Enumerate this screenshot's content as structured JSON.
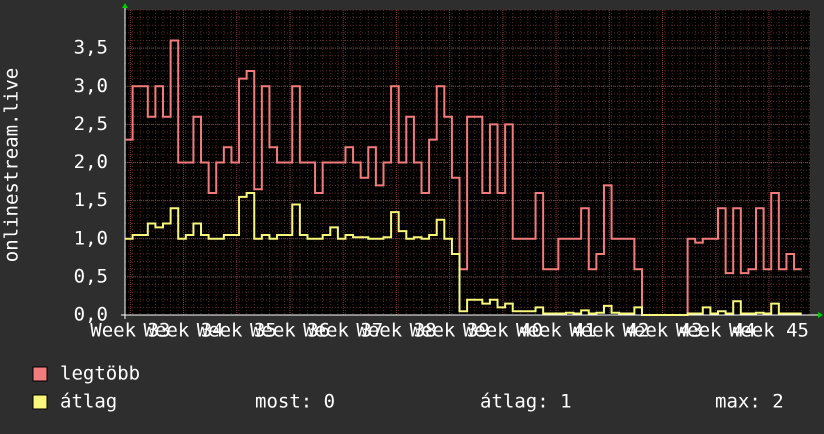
{
  "chart_data": {
    "type": "step",
    "ylabel": "onlinestream.live",
    "x": [
      0,
      1,
      2,
      3,
      4,
      5,
      6,
      7,
      8,
      9,
      10,
      11,
      12,
      13,
      14,
      15,
      16,
      17,
      18,
      19,
      20,
      21,
      22,
      23,
      24,
      25,
      26,
      27,
      28,
      29,
      30,
      31,
      32,
      33,
      34,
      35,
      36,
      37,
      38,
      39,
      40,
      41,
      42,
      43,
      44,
      45,
      46,
      47,
      48,
      49,
      50,
      51,
      52,
      53,
      54,
      55,
      56,
      57,
      58,
      59,
      60,
      61,
      62,
      63,
      64,
      65,
      66,
      67,
      68,
      69,
      70,
      71,
      72,
      73,
      74,
      75,
      76,
      77,
      78,
      79,
      80,
      81,
      82,
      83,
      84,
      85,
      86,
      87,
      88
    ],
    "series": [
      {
        "name": "legtöbb",
        "color": "#f27c7c",
        "values": [
          2.3,
          3.0,
          3.0,
          2.6,
          3.0,
          2.6,
          3.6,
          2.0,
          2.0,
          2.6,
          2.0,
          1.6,
          2.0,
          2.2,
          2.0,
          3.1,
          3.2,
          1.65,
          3.0,
          2.2,
          2.0,
          2.0,
          3.0,
          2.0,
          2.0,
          1.6,
          2.0,
          2.0,
          2.0,
          2.2,
          2.0,
          1.8,
          2.2,
          1.7,
          2.0,
          3.0,
          2.0,
          2.6,
          2.0,
          1.6,
          2.3,
          3.0,
          2.6,
          1.8,
          0.6,
          2.6,
          2.6,
          1.6,
          2.5,
          1.6,
          2.5,
          1.0,
          1.0,
          1.0,
          1.6,
          0.6,
          0.6,
          1.0,
          1.0,
          1.0,
          1.4,
          0.6,
          0.8,
          1.7,
          1.0,
          1.0,
          1.0,
          0.6,
          0,
          0,
          0,
          0,
          0,
          0,
          1.0,
          0.95,
          1.0,
          1.0,
          1.4,
          0.55,
          1.4,
          0.55,
          0.6,
          1.4,
          0.6,
          1.6,
          0.6,
          0.8,
          0.6
        ]
      },
      {
        "name": "átlag",
        "color": "#f7f77c",
        "values": [
          1.0,
          1.05,
          1.05,
          1.2,
          1.15,
          1.2,
          1.4,
          1.0,
          1.05,
          1.2,
          1.05,
          1.0,
          1.0,
          1.05,
          1.05,
          1.55,
          1.6,
          1.0,
          1.05,
          1.0,
          1.05,
          1.05,
          1.45,
          1.05,
          1.0,
          1.0,
          1.05,
          1.15,
          1.0,
          1.05,
          1.02,
          1.02,
          1.0,
          1.0,
          1.02,
          1.35,
          1.1,
          1.0,
          1.02,
          1.0,
          1.05,
          1.25,
          1.0,
          0.8,
          0.05,
          0.2,
          0.2,
          0.15,
          0.2,
          0.1,
          0.15,
          0.05,
          0.05,
          0.05,
          0.1,
          0.02,
          0.02,
          0.02,
          0.03,
          0.02,
          0.06,
          0.02,
          0.03,
          0.12,
          0.03,
          0.02,
          0.02,
          0.1,
          0,
          0,
          0,
          0,
          0,
          0,
          0.02,
          0.02,
          0.1,
          0.02,
          0.05,
          0.02,
          0.18,
          0.02,
          0.02,
          0.03,
          0.02,
          0.15,
          0.02,
          0.02,
          0.02
        ]
      }
    ],
    "xlim": [
      0,
      90.1
    ],
    "xticks": [
      {
        "value": 0.7,
        "label": "Week 33"
      },
      {
        "value": 7.7,
        "label": "Week 34"
      },
      {
        "value": 14.7,
        "label": "Week 35"
      },
      {
        "value": 21.7,
        "label": "Week 36"
      },
      {
        "value": 28.7,
        "label": "Week 37"
      },
      {
        "value": 35.7,
        "label": "Week 38"
      },
      {
        "value": 42.7,
        "label": "Week 39"
      },
      {
        "value": 49.7,
        "label": "Week 40"
      },
      {
        "value": 56.7,
        "label": "Week 41"
      },
      {
        "value": 63.7,
        "label": "Week 42"
      },
      {
        "value": 70.7,
        "label": "Week 43"
      },
      {
        "value": 77.7,
        "label": "Week 44"
      },
      {
        "value": 84.7,
        "label": "Week 45"
      }
    ],
    "ylim": [
      0,
      4
    ],
    "yticks": [
      {
        "value": 0,
        "label": "0,0"
      },
      {
        "value": 0.5,
        "label": "0,5"
      },
      {
        "value": 1,
        "label": "1,0"
      },
      {
        "value": 1.5,
        "label": "1,5"
      },
      {
        "value": 2,
        "label": "2,0"
      },
      {
        "value": 2.5,
        "label": "2,5"
      },
      {
        "value": 3,
        "label": "3,0"
      },
      {
        "value": 3.5,
        "label": "3,5"
      }
    ],
    "grid": true,
    "stats": [
      "most: 0",
      "átlag: 1",
      "max: 2"
    ]
  }
}
